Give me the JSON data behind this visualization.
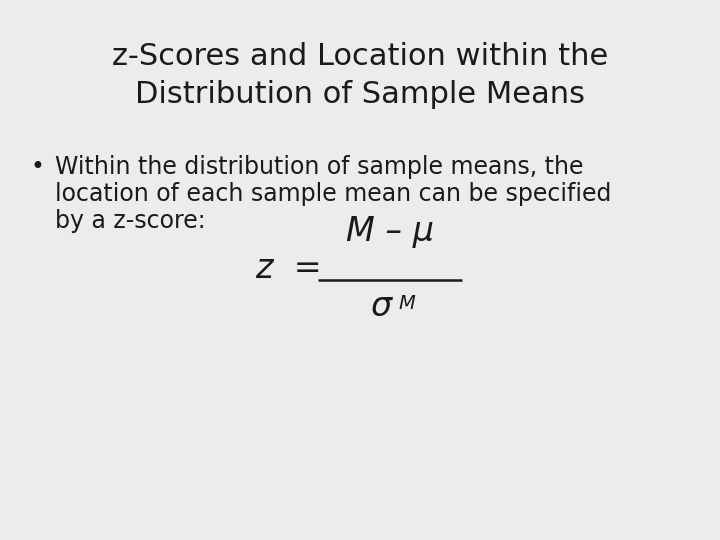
{
  "title_line1": "z-Scores and Location within the",
  "title_line2": "Distribution of Sample Means",
  "bullet_text_line1": "Within the distribution of sample means, the",
  "bullet_text_line2": "location of each sample mean can be specified",
  "bullet_text_line3": "by a z-score:",
  "formula_z": "z  =",
  "formula_numerator": "M – μ",
  "formula_denominator": "σ",
  "formula_denominator_sub": "M",
  "bg_color": "#ececec",
  "title_color": "#1a1a1a",
  "text_color": "#1a1a1a",
  "title_fontsize": 22,
  "body_fontsize": 17,
  "formula_fontsize": 24,
  "formula_sub_fontsize": 14
}
